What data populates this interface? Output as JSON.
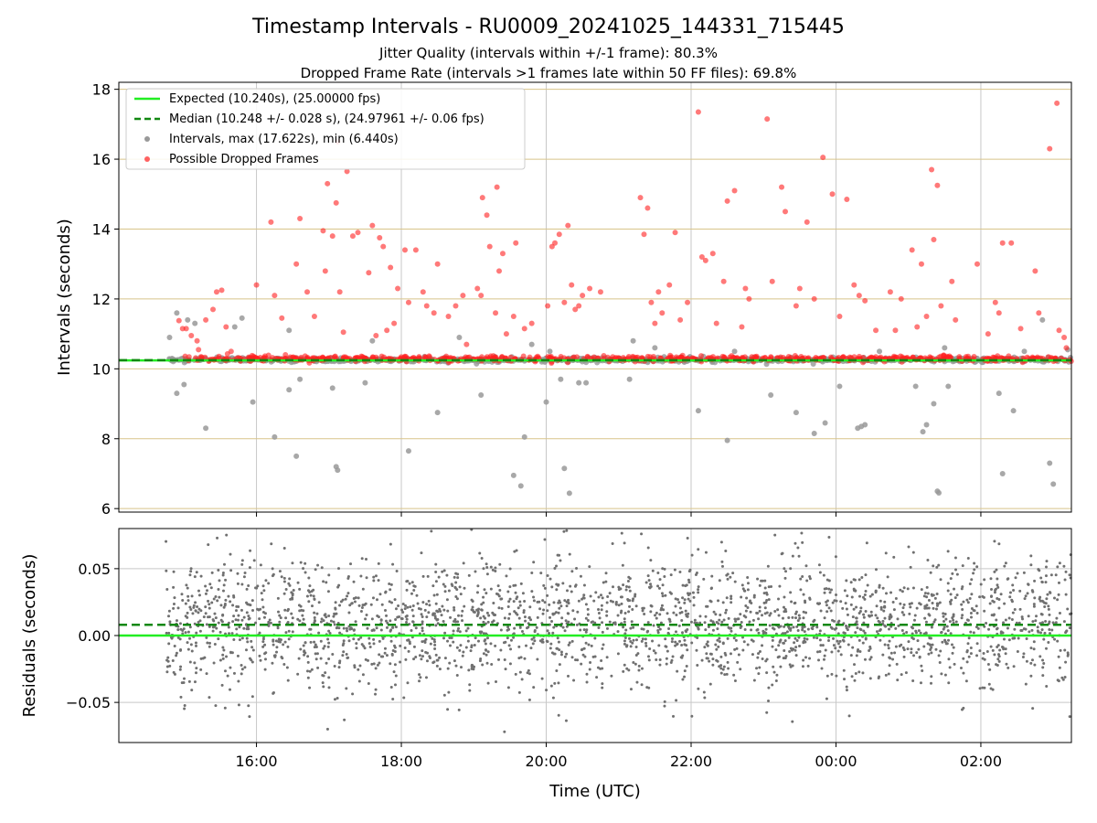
{
  "title": "Timestamp Intervals - RU0009_20241025_144331_715445",
  "subtitle_1": "Jitter Quality (intervals within +/-1 frame): 80.3%",
  "subtitle_2": "Dropped Frame Rate (intervals >1 frames late within 50 FF files): 69.8%",
  "colors": {
    "expected": "#22ee22",
    "median": "#118811",
    "intervals": "#999999",
    "dropped": "#ff2020",
    "residuals": "#707070",
    "hgrid_top": "#d8c48a",
    "grid": "#c8c8c8"
  },
  "chart_data": [
    {
      "type": "scatter",
      "panel": "intervals",
      "ylabel": "Intervals (seconds)",
      "xlabel": "",
      "x_unit": "hours UTC (continuing past midnight)",
      "xlim": [
        14.1,
        27.25
      ],
      "ylim": [
        5.9,
        18.2
      ],
      "x_ticks": [
        16,
        18,
        20,
        22,
        24,
        26
      ],
      "x_tick_labels": [
        "16:00",
        "18:00",
        "20:00",
        "22:00",
        "00:00",
        "02:00"
      ],
      "y_ticks": [
        6,
        8,
        10,
        12,
        14,
        16,
        18
      ],
      "y_tick_labels": [
        "6",
        "8",
        "10",
        "12",
        "14",
        "16",
        "18"
      ],
      "grid": true,
      "legend_position": "top-left",
      "legend": [
        "Expected (10.240s), (25.00000 fps)",
        "Median (10.248 +/- 0.028 s), (24.97961 +/- 0.06 fps)",
        "Intervals, max (17.622s), min (6.440s)",
        "Possible Dropped Frames"
      ],
      "expected_line": 10.24,
      "median_line": 10.248,
      "data_start": 14.75,
      "data_end": 27.25,
      "baseline_cluster": {
        "center": 10.26,
        "spread": 0.03
      },
      "dropped_frames": [
        [
          14.93,
          11.38
        ],
        [
          14.98,
          11.15
        ],
        [
          15.03,
          11.15
        ],
        [
          15.1,
          10.95
        ],
        [
          15.18,
          10.8
        ],
        [
          15.2,
          10.55
        ],
        [
          15.3,
          11.4
        ],
        [
          15.4,
          11.7
        ],
        [
          15.45,
          12.2
        ],
        [
          15.52,
          12.25
        ],
        [
          15.58,
          11.2
        ],
        [
          15.65,
          10.5
        ],
        [
          15.9,
          10.3
        ],
        [
          16.0,
          12.4
        ],
        [
          16.2,
          14.2
        ],
        [
          16.25,
          12.1
        ],
        [
          16.35,
          11.45
        ],
        [
          16.4,
          10.4
        ],
        [
          16.55,
          13.0
        ],
        [
          16.6,
          14.3
        ],
        [
          16.7,
          12.2
        ],
        [
          16.8,
          11.5
        ],
        [
          16.92,
          13.95
        ],
        [
          16.95,
          12.8
        ],
        [
          16.98,
          15.3
        ],
        [
          17.05,
          13.8
        ],
        [
          17.1,
          14.75
        ],
        [
          17.12,
          16.5
        ],
        [
          17.15,
          12.2
        ],
        [
          17.2,
          11.05
        ],
        [
          17.25,
          15.65
        ],
        [
          17.33,
          13.8
        ],
        [
          17.4,
          13.9
        ],
        [
          17.55,
          12.75
        ],
        [
          17.6,
          14.1
        ],
        [
          17.65,
          10.95
        ],
        [
          17.7,
          13.75
        ],
        [
          17.75,
          13.5
        ],
        [
          17.8,
          11.1
        ],
        [
          17.85,
          12.9
        ],
        [
          17.9,
          11.3
        ],
        [
          17.95,
          12.3
        ],
        [
          18.05,
          13.4
        ],
        [
          18.1,
          11.9
        ],
        [
          18.2,
          13.4
        ],
        [
          18.3,
          12.2
        ],
        [
          18.35,
          11.8
        ],
        [
          18.45,
          11.6
        ],
        [
          18.5,
          13.0
        ],
        [
          18.65,
          11.5
        ],
        [
          18.75,
          11.8
        ],
        [
          18.85,
          12.1
        ],
        [
          18.9,
          10.7
        ],
        [
          19.05,
          12.3
        ],
        [
          19.1,
          12.1
        ],
        [
          19.12,
          14.9
        ],
        [
          19.18,
          14.4
        ],
        [
          19.22,
          13.5
        ],
        [
          19.3,
          11.6
        ],
        [
          19.32,
          15.2
        ],
        [
          19.35,
          12.8
        ],
        [
          19.4,
          13.3
        ],
        [
          19.45,
          11.0
        ],
        [
          19.55,
          11.5
        ],
        [
          19.58,
          13.6
        ],
        [
          19.7,
          11.15
        ],
        [
          19.8,
          11.3
        ],
        [
          20.02,
          11.8
        ],
        [
          20.08,
          13.5
        ],
        [
          20.12,
          13.6
        ],
        [
          20.18,
          13.85
        ],
        [
          20.25,
          11.9
        ],
        [
          20.3,
          14.1
        ],
        [
          20.35,
          12.4
        ],
        [
          20.4,
          11.7
        ],
        [
          20.45,
          11.8
        ],
        [
          20.5,
          12.1
        ],
        [
          20.6,
          12.3
        ],
        [
          20.75,
          12.2
        ],
        [
          21.3,
          14.9
        ],
        [
          21.35,
          13.85
        ],
        [
          21.4,
          14.6
        ],
        [
          21.45,
          11.9
        ],
        [
          21.5,
          11.3
        ],
        [
          21.55,
          12.2
        ],
        [
          21.6,
          11.6
        ],
        [
          21.7,
          12.4
        ],
        [
          21.78,
          13.9
        ],
        [
          21.85,
          11.4
        ],
        [
          21.95,
          11.9
        ],
        [
          22.1,
          17.35
        ],
        [
          22.15,
          13.2
        ],
        [
          22.2,
          13.1
        ],
        [
          22.3,
          13.3
        ],
        [
          22.35,
          11.3
        ],
        [
          22.45,
          12.5
        ],
        [
          22.5,
          14.8
        ],
        [
          22.6,
          15.1
        ],
        [
          22.7,
          11.2
        ],
        [
          22.75,
          12.3
        ],
        [
          22.8,
          12.0
        ],
        [
          23.05,
          17.15
        ],
        [
          23.12,
          12.5
        ],
        [
          23.25,
          15.2
        ],
        [
          23.3,
          14.5
        ],
        [
          23.45,
          11.8
        ],
        [
          23.5,
          12.3
        ],
        [
          23.6,
          14.2
        ],
        [
          23.7,
          12.0
        ],
        [
          23.82,
          16.05
        ],
        [
          23.95,
          15.0
        ],
        [
          24.05,
          11.5
        ],
        [
          24.15,
          14.85
        ],
        [
          24.25,
          12.4
        ],
        [
          24.32,
          12.1
        ],
        [
          24.4,
          11.95
        ],
        [
          24.55,
          11.1
        ],
        [
          24.75,
          12.2
        ],
        [
          24.82,
          11.1
        ],
        [
          24.9,
          12.0
        ],
        [
          25.05,
          13.4
        ],
        [
          25.12,
          11.2
        ],
        [
          25.18,
          13.0
        ],
        [
          25.25,
          11.5
        ],
        [
          25.32,
          15.7
        ],
        [
          25.35,
          13.7
        ],
        [
          25.4,
          15.25
        ],
        [
          25.45,
          11.8
        ],
        [
          25.6,
          12.5
        ],
        [
          25.65,
          11.4
        ],
        [
          25.95,
          13.0
        ],
        [
          26.1,
          11.0
        ],
        [
          26.2,
          11.9
        ],
        [
          26.25,
          11.6
        ],
        [
          26.3,
          13.6
        ],
        [
          26.42,
          13.6
        ],
        [
          26.55,
          11.15
        ],
        [
          26.75,
          12.8
        ],
        [
          26.8,
          11.6
        ],
        [
          26.95,
          16.3
        ],
        [
          27.05,
          17.6
        ],
        [
          27.08,
          11.1
        ],
        [
          27.15,
          10.9
        ],
        [
          27.18,
          10.6
        ]
      ],
      "low_outliers": [
        [
          14.9,
          9.3
        ],
        [
          15.0,
          9.55
        ],
        [
          15.3,
          8.3
        ],
        [
          15.95,
          9.05
        ],
        [
          16.25,
          8.05
        ],
        [
          16.45,
          9.4
        ],
        [
          16.55,
          7.5
        ],
        [
          16.6,
          9.7
        ],
        [
          17.1,
          7.2
        ],
        [
          17.12,
          7.1
        ],
        [
          17.05,
          9.45
        ],
        [
          17.5,
          9.6
        ],
        [
          18.1,
          7.65
        ],
        [
          18.5,
          8.75
        ],
        [
          19.1,
          9.25
        ],
        [
          19.55,
          6.95
        ],
        [
          19.65,
          6.65
        ],
        [
          19.7,
          8.05
        ],
        [
          20.0,
          9.05
        ],
        [
          20.2,
          9.7
        ],
        [
          20.25,
          7.15
        ],
        [
          20.32,
          6.44
        ],
        [
          20.45,
          9.6
        ],
        [
          20.55,
          9.6
        ],
        [
          21.15,
          9.7
        ],
        [
          22.1,
          8.8
        ],
        [
          22.5,
          7.95
        ],
        [
          23.1,
          9.25
        ],
        [
          23.45,
          8.75
        ],
        [
          23.7,
          8.15
        ],
        [
          23.85,
          8.45
        ],
        [
          24.05,
          9.5
        ],
        [
          24.3,
          8.3
        ],
        [
          24.35,
          8.35
        ],
        [
          24.4,
          8.4
        ],
        [
          25.1,
          9.5
        ],
        [
          25.2,
          8.2
        ],
        [
          25.25,
          8.4
        ],
        [
          25.35,
          9.0
        ],
        [
          25.4,
          6.5
        ],
        [
          25.42,
          6.45
        ],
        [
          25.55,
          9.5
        ],
        [
          26.25,
          9.3
        ],
        [
          26.3,
          7.0
        ],
        [
          26.45,
          8.8
        ],
        [
          26.95,
          7.3
        ],
        [
          27.0,
          6.7
        ]
      ],
      "high_gray": [
        [
          14.8,
          10.9
        ],
        [
          14.9,
          11.6
        ],
        [
          15.05,
          11.4
        ],
        [
          15.15,
          11.3
        ],
        [
          15.7,
          11.2
        ],
        [
          15.8,
          11.45
        ],
        [
          16.45,
          11.1
        ],
        [
          17.6,
          10.8
        ],
        [
          18.8,
          10.9
        ],
        [
          19.8,
          10.7
        ],
        [
          20.05,
          10.5
        ],
        [
          21.2,
          10.8
        ],
        [
          21.5,
          10.6
        ],
        [
          22.6,
          10.5
        ],
        [
          24.6,
          10.5
        ],
        [
          25.5,
          10.6
        ],
        [
          26.6,
          10.5
        ],
        [
          26.85,
          11.4
        ],
        [
          27.2,
          10.55
        ]
      ]
    },
    {
      "type": "scatter",
      "panel": "residuals",
      "ylabel": "Residuals (seconds)",
      "xlabel": "Time (UTC)",
      "xlim": [
        14.1,
        27.25
      ],
      "ylim": [
        -0.08,
        0.08
      ],
      "x_ticks": [
        16,
        18,
        20,
        22,
        24,
        26
      ],
      "x_tick_labels": [
        "16:00",
        "18:00",
        "20:00",
        "22:00",
        "00:00",
        "02:00"
      ],
      "y_ticks": [
        -0.05,
        0.0,
        0.05
      ],
      "y_tick_labels": [
        "−0.05",
        "0.00",
        "0.05"
      ],
      "grid": true,
      "expected_line": 0.0,
      "median_line": 0.008,
      "residual_cluster": {
        "center": 0.01,
        "spread": 0.025
      },
      "data_start": 14.75,
      "data_end": 27.25
    }
  ]
}
